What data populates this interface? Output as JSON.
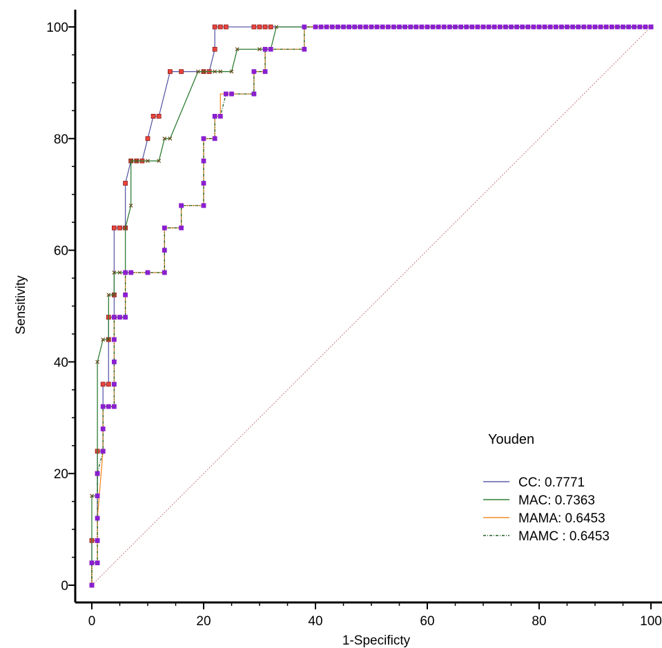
{
  "chart_data": {
    "type": "line",
    "title": "",
    "xlabel": "1-Specificty",
    "ylabel": "Sensitivity",
    "xlim": [
      0,
      100
    ],
    "ylim": [
      0,
      100
    ],
    "x_ticks": [
      0,
      20,
      40,
      60,
      80,
      100
    ],
    "y_ticks": [
      0,
      20,
      40,
      60,
      80,
      100
    ],
    "x_tick_labels": [
      "0",
      "20",
      "40",
      "60",
      "80",
      "100"
    ],
    "y_tick_labels": [
      "0",
      "20",
      "40",
      "60",
      "80",
      "100"
    ],
    "grid": false,
    "legend": {
      "title": "Youden",
      "position": "bottom-right"
    },
    "reference_line": {
      "x": [
        0,
        100
      ],
      "y": [
        0,
        100
      ],
      "color": "#c87878"
    },
    "series": [
      {
        "name": "CC: 0.7771",
        "color": "#5b5ba8",
        "marker_color": "#e8453c",
        "points": [
          [
            0,
            0
          ],
          [
            0,
            8
          ],
          [
            1,
            8
          ],
          [
            1,
            20
          ],
          [
            1,
            24
          ],
          [
            2,
            24
          ],
          [
            2,
            36
          ],
          [
            3,
            36
          ],
          [
            3,
            44
          ],
          [
            3,
            48
          ],
          [
            4,
            48
          ],
          [
            4,
            52
          ],
          [
            4,
            64
          ],
          [
            5,
            64
          ],
          [
            6,
            64
          ],
          [
            6,
            72
          ],
          [
            7,
            76
          ],
          [
            8,
            76
          ],
          [
            9,
            76
          ],
          [
            10,
            80
          ],
          [
            11,
            84
          ],
          [
            12,
            84
          ],
          [
            14,
            92
          ],
          [
            16,
            92
          ],
          [
            20,
            92
          ],
          [
            21,
            92
          ],
          [
            22,
            96
          ],
          [
            22,
            100
          ],
          [
            23,
            100
          ],
          [
            24,
            100
          ],
          [
            29,
            100
          ],
          [
            30,
            100
          ],
          [
            31,
            100
          ],
          [
            32,
            100
          ],
          [
            100,
            100
          ]
        ]
      },
      {
        "name": "MAC:  0.7363",
        "color": "#2e7d32",
        "marker_color": "#6a4a1e",
        "points": [
          [
            0,
            0
          ],
          [
            0,
            16
          ],
          [
            1,
            16
          ],
          [
            1,
            40
          ],
          [
            2,
            44
          ],
          [
            3,
            44
          ],
          [
            3,
            52
          ],
          [
            4,
            52
          ],
          [
            4,
            56
          ],
          [
            5,
            56
          ],
          [
            6,
            56
          ],
          [
            6,
            64
          ],
          [
            7,
            68
          ],
          [
            7,
            76
          ],
          [
            8,
            76
          ],
          [
            10,
            76
          ],
          [
            12,
            76
          ],
          [
            13,
            80
          ],
          [
            14,
            80
          ],
          [
            19,
            92
          ],
          [
            20,
            92
          ],
          [
            22,
            92
          ],
          [
            23,
            92
          ],
          [
            25,
            92
          ],
          [
            26,
            96
          ],
          [
            30,
            96
          ],
          [
            32,
            96
          ],
          [
            33,
            100
          ],
          [
            100,
            100
          ]
        ]
      },
      {
        "name": "MAMA: 0.6453",
        "color": "#f28c28",
        "marker_color": "#f28c28",
        "points": [
          [
            0,
            0
          ],
          [
            0,
            4
          ],
          [
            1,
            4
          ],
          [
            1,
            8
          ],
          [
            1,
            12
          ],
          [
            2,
            24
          ],
          [
            2,
            32
          ],
          [
            3,
            32
          ],
          [
            4,
            32
          ],
          [
            4,
            36
          ],
          [
            4,
            40
          ],
          [
            4,
            44
          ],
          [
            4,
            48
          ],
          [
            5,
            48
          ],
          [
            6,
            48
          ],
          [
            6,
            52
          ],
          [
            6,
            56
          ],
          [
            7,
            56
          ],
          [
            10,
            56
          ],
          [
            13,
            56
          ],
          [
            13,
            60
          ],
          [
            13,
            64
          ],
          [
            16,
            64
          ],
          [
            16,
            68
          ],
          [
            20,
            68
          ],
          [
            20,
            72
          ],
          [
            20,
            76
          ],
          [
            20,
            80
          ],
          [
            22,
            80
          ],
          [
            22,
            84
          ],
          [
            23,
            84
          ],
          [
            23,
            88
          ],
          [
            25,
            88
          ],
          [
            29,
            88
          ],
          [
            29,
            92
          ],
          [
            31,
            92
          ],
          [
            31,
            96
          ],
          [
            32,
            96
          ],
          [
            38,
            96
          ],
          [
            38,
            100
          ],
          [
            100,
            100
          ]
        ]
      },
      {
        "name": "MAMC : 0.6453",
        "color": "#1b5e20",
        "marker_color": "#8a1fd0",
        "points": [
          [
            0,
            0
          ],
          [
            0,
            4
          ],
          [
            1,
            4
          ],
          [
            1,
            8
          ],
          [
            1,
            12
          ],
          [
            1,
            16
          ],
          [
            1,
            20
          ],
          [
            2,
            24
          ],
          [
            2,
            28
          ],
          [
            2,
            32
          ],
          [
            3,
            32
          ],
          [
            4,
            32
          ],
          [
            4,
            36
          ],
          [
            4,
            40
          ],
          [
            4,
            44
          ],
          [
            4,
            48
          ],
          [
            5,
            48
          ],
          [
            6,
            48
          ],
          [
            6,
            52
          ],
          [
            6,
            56
          ],
          [
            7,
            56
          ],
          [
            10,
            56
          ],
          [
            13,
            56
          ],
          [
            13,
            60
          ],
          [
            13,
            64
          ],
          [
            16,
            64
          ],
          [
            16,
            68
          ],
          [
            20,
            68
          ],
          [
            20,
            72
          ],
          [
            20,
            76
          ],
          [
            20,
            80
          ],
          [
            22,
            80
          ],
          [
            22,
            84
          ],
          [
            23,
            84
          ],
          [
            24,
            88
          ],
          [
            25,
            88
          ],
          [
            29,
            88
          ],
          [
            29,
            92
          ],
          [
            31,
            92
          ],
          [
            31,
            96
          ],
          [
            32,
            96
          ],
          [
            38,
            96
          ],
          [
            38,
            100
          ],
          [
            100,
            100
          ]
        ]
      }
    ]
  }
}
